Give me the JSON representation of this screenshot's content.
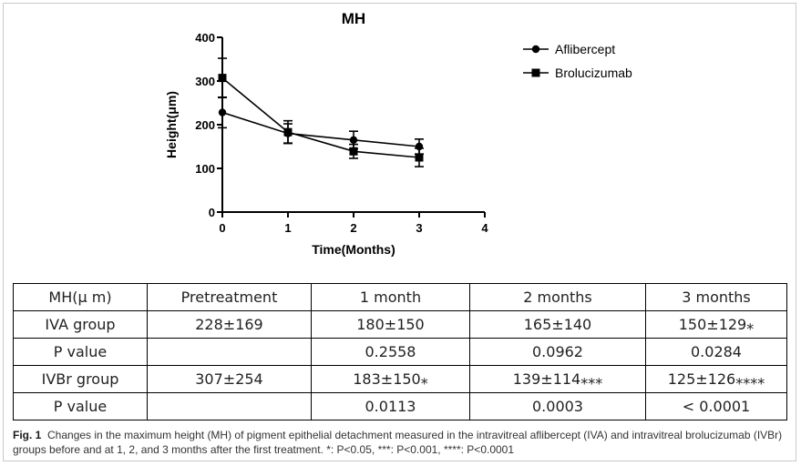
{
  "chart_data": {
    "type": "line",
    "title": "MH",
    "xlabel": "Time(Months)",
    "ylabel": "Height(μm)",
    "x": [
      0,
      1,
      2,
      3
    ],
    "xlim": [
      0,
      4
    ],
    "ylim": [
      0,
      400
    ],
    "xticks": [
      "0",
      "1",
      "2",
      "3",
      "4"
    ],
    "yticks": [
      "0",
      "100",
      "200",
      "300",
      "400"
    ],
    "grid": false,
    "legend_position": "top-right",
    "series": [
      {
        "name": "Aflibercept",
        "marker": "circle",
        "values": [
          228,
          180,
          165,
          150
        ],
        "error": [
          35,
          22,
          20,
          17
        ],
        "color": "#000000"
      },
      {
        "name": "Brolucizumab",
        "marker": "square",
        "values": [
          307,
          183,
          139,
          125
        ],
        "error": [
          45,
          26,
          16,
          21
        ],
        "color": "#000000"
      }
    ]
  },
  "table": {
    "header": [
      "MH(μ m)",
      "Pretreatment",
      "1 month",
      "2 months",
      "3 months"
    ],
    "rows": [
      [
        "IVA group",
        "228±169",
        "180±150",
        "165±140",
        "150±129⁎"
      ],
      [
        "P value",
        "",
        "0.2558",
        "0.0962",
        "0.0284"
      ],
      [
        "IVBr group",
        "307±254",
        "183±150⁎",
        "139±114⁎⁎⁎",
        "125±126⁎⁎⁎⁎"
      ],
      [
        "P value",
        "",
        "0.0113",
        "0.0003",
        "< 0.0001"
      ]
    ]
  },
  "caption": {
    "label": "Fig. 1",
    "text": "Changes in the maximum height (MH) of pigment epithelial detachment measured in the intravitreal aflibercept (IVA) and intravitreal brolucizumab (IVBr) groups before and at 1, 2, and 3 months after the first treatment. *: P<0.05, ***: P<0.001, ****: P<0.0001"
  }
}
